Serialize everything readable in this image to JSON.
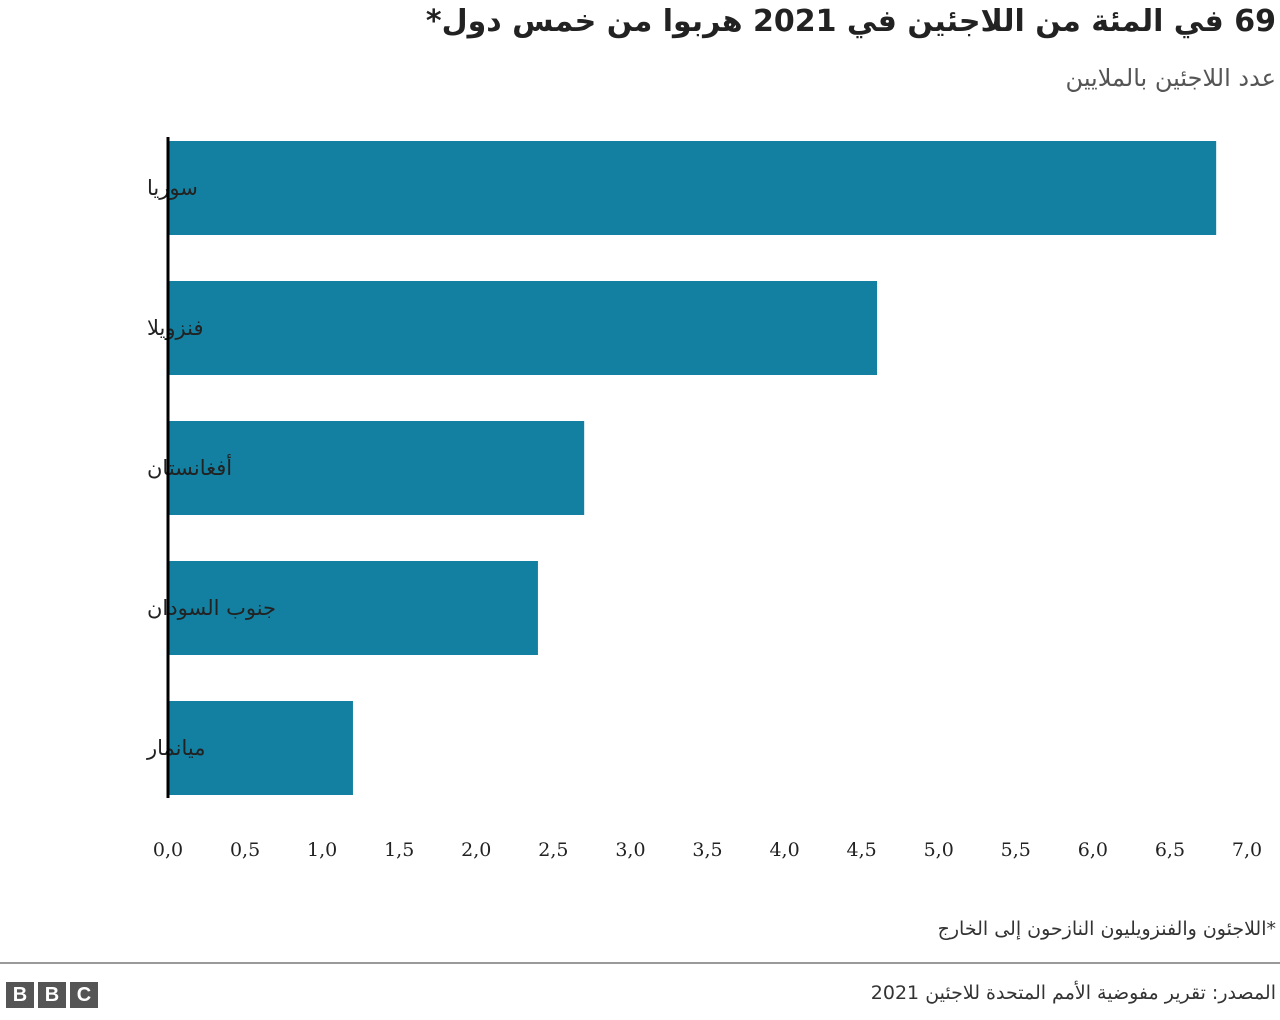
{
  "chart_data": {
    "type": "bar",
    "orientation": "horizontal",
    "title": "69 في المئة من اللاجئين في 2021 هربوا من خمس دول*",
    "subtitle": "عدد اللاجئين بالملايين",
    "categories": [
      "سوريا",
      "فنزويلا",
      "أفغانستان",
      "جنوب السودان",
      "ميانمار"
    ],
    "values": [
      6.8,
      4.6,
      2.7,
      2.4,
      1.2
    ],
    "xlim": [
      0,
      7
    ],
    "ticks": [
      "0,0",
      "0,5",
      "1,0",
      "1,5",
      "2,0",
      "2,5",
      "3,0",
      "3,5",
      "4,0",
      "4,5",
      "5,0",
      "5,5",
      "6,0",
      "6,5",
      "7,0"
    ],
    "grid": false,
    "bar_color": "#1380a1",
    "footnote": "*اللاجئون والفنزويليون النازحون إلى الخارج",
    "source": "المصدر: تقرير مفوضية الأمم المتحدة للاجئين 2021"
  },
  "branding": {
    "logo_letters": [
      "B",
      "B",
      "C"
    ]
  }
}
